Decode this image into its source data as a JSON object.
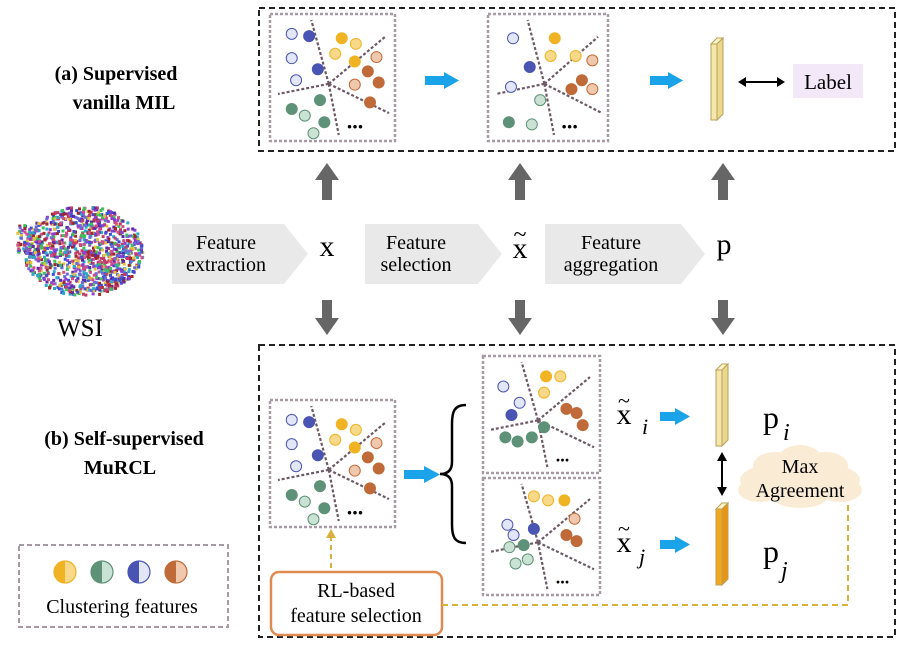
{
  "colors": {
    "gold": "#f0b323",
    "gold_light": "#f8d98a",
    "green": "#5e9278",
    "green_light": "#c9e2d4",
    "blue": "#4a55b3",
    "blue_light": "#e3e6f7",
    "brown": "#c06a3a",
    "brown_light": "#f0c8ad",
    "dash_gray": "#555555",
    "box_border": "#a89aa4",
    "arrow_blue": "#1aa3e8",
    "arrow_gray": "#666666",
    "gray_band": "#e9e9e9",
    "label_bg": "#f3e8f8",
    "rl_border": "#e08a52",
    "dashed_gold": "#d9b23d",
    "bar_light": "#f5e7ab",
    "bar_side": "#ecd88d",
    "bar_top": "#fff4c8",
    "bar_orange": "#f3a71f",
    "bar_orange_side": "#e79512"
  },
  "section_a": {
    "line1": "(a) Supervised",
    "line2": "vanilla MIL",
    "label_text": "Label"
  },
  "section_b": {
    "line1": "(b) Self-supervised",
    "line2": "MuRCL"
  },
  "wsi_label": "WSI",
  "pipeline": {
    "step1_line1": "Feature",
    "step1_line2": "extraction",
    "step2_line1": "Feature",
    "step2_line2": "selection",
    "step3_line1": "Feature",
    "step3_line2": "aggregation",
    "symbol_x": "x",
    "symbol_xt": "x",
    "symbol_tilde": "~",
    "symbol_p": "p"
  },
  "views": {
    "xi_base": "x",
    "xi_sub": "i",
    "xj_base": "x",
    "xj_sub": "j",
    "pi_base": "p",
    "pi_sub": "i",
    "pj_base": "p",
    "pj_sub": "j",
    "ellipsis": "..."
  },
  "max_agreement": {
    "line1": "Max",
    "line2": "Agreement"
  },
  "rl_selection": {
    "line1": "RL-based",
    "line2": "feature selection"
  },
  "legend": {
    "caption": "Clustering features",
    "items": [
      "gold",
      "green",
      "blue",
      "brown"
    ]
  }
}
